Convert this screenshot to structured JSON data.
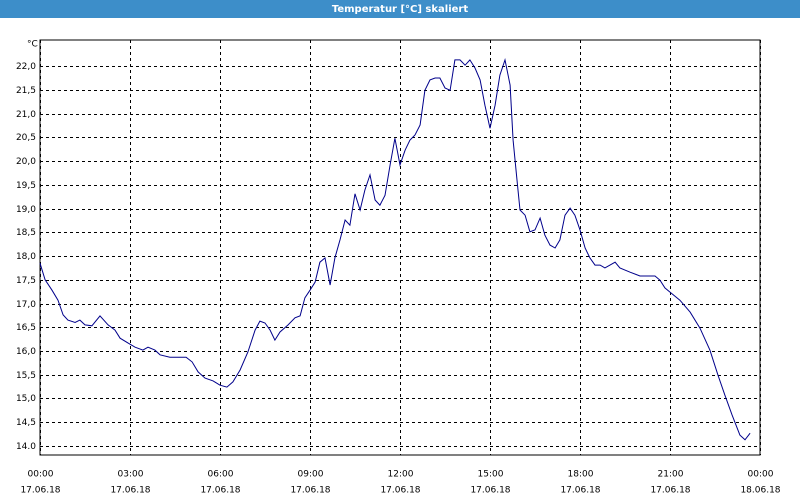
{
  "chart_data": {
    "type": "line",
    "title": "Temperatur [°C] skaliert",
    "y_label": "°C",
    "x": [
      0,
      0.17,
      0.4,
      0.6,
      0.77,
      0.93,
      1.17,
      1.33,
      1.5,
      1.73,
      2,
      2.27,
      2.5,
      2.67,
      2.93,
      3.17,
      3.43,
      3.6,
      3.83,
      4,
      4.33,
      4.67,
      4.87,
      5.07,
      5.27,
      5.5,
      5.77,
      6,
      6.23,
      6.43,
      6.67,
      6.93,
      7.17,
      7.33,
      7.5,
      7.67,
      7.83,
      8,
      8.27,
      8.5,
      8.67,
      8.83,
      9,
      9.17,
      9.33,
      9.5,
      9.67,
      9.83,
      10,
      10.17,
      10.33,
      10.5,
      10.67,
      10.83,
      11,
      11.17,
      11.33,
      11.5,
      11.67,
      11.83,
      12,
      12.17,
      12.33,
      12.5,
      12.67,
      12.83,
      13,
      13.17,
      13.33,
      13.5,
      13.67,
      13.83,
      14,
      14.17,
      14.33,
      14.5,
      14.67,
      14.83,
      15,
      15.17,
      15.33,
      15.5,
      15.67,
      15.77,
      15.9,
      16,
      16.17,
      16.33,
      16.5,
      16.67,
      16.83,
      17,
      17.17,
      17.33,
      17.5,
      17.67,
      17.83,
      18,
      18.17,
      18.33,
      18.5,
      18.67,
      18.83,
      19,
      19.17,
      19.33,
      19.67,
      20,
      20.5,
      20.67,
      20.83,
      21,
      21.33,
      21.67,
      22,
      22.33,
      22.6,
      22.83,
      23.07,
      23.33,
      23.5,
      23.67
    ],
    "series": [
      {
        "name": "Temperatur",
        "color": "#00008b",
        "values": [
          17.85,
          17.5,
          17.28,
          17.07,
          16.76,
          16.65,
          16.6,
          16.65,
          16.55,
          16.53,
          16.74,
          16.55,
          16.44,
          16.27,
          16.17,
          16.08,
          16.02,
          16.08,
          16.02,
          15.92,
          15.87,
          15.87,
          15.87,
          15.77,
          15.56,
          15.43,
          15.37,
          15.28,
          15.24,
          15.35,
          15.6,
          15.98,
          16.44,
          16.63,
          16.59,
          16.44,
          16.23,
          16.4,
          16.55,
          16.7,
          16.74,
          17.12,
          17.28,
          17.45,
          17.87,
          17.96,
          17.39,
          17.96,
          18.34,
          18.76,
          18.65,
          19.31,
          18.97,
          19.39,
          19.71,
          19.18,
          19.07,
          19.28,
          19.92,
          20.48,
          19.92,
          20.23,
          20.44,
          20.55,
          20.76,
          21.49,
          21.71,
          21.75,
          21.75,
          21.54,
          21.49,
          22.13,
          22.13,
          22.02,
          22.13,
          21.96,
          21.71,
          21.18,
          20.69,
          21.18,
          21.81,
          22.13,
          21.6,
          20.44,
          19.6,
          18.97,
          18.86,
          18.51,
          18.55,
          18.8,
          18.44,
          18.23,
          18.17,
          18.34,
          18.86,
          19.01,
          18.86,
          18.55,
          18.17,
          17.96,
          17.81,
          17.81,
          17.75,
          17.81,
          17.87,
          17.75,
          17.66,
          17.58,
          17.58,
          17.49,
          17.33,
          17.24,
          17.07,
          16.82,
          16.48,
          16.02,
          15.49,
          15.07,
          14.65,
          14.23,
          14.13,
          14.27
        ]
      }
    ],
    "xlim": [
      0,
      24
    ],
    "xticks": [
      {
        "value": 0,
        "label": "00:00",
        "date": "17.06.18"
      },
      {
        "value": 3,
        "label": "03:00",
        "date": "17.06.18"
      },
      {
        "value": 6,
        "label": "06:00",
        "date": "17.06.18"
      },
      {
        "value": 9,
        "label": "09:00",
        "date": "17.06.18"
      },
      {
        "value": 12,
        "label": "12:00",
        "date": "17.06.18"
      },
      {
        "value": 15,
        "label": "15:00",
        "date": "17.06.18"
      },
      {
        "value": 18,
        "label": "18:00",
        "date": "17.06.18"
      },
      {
        "value": 21,
        "label": "21:00",
        "date": "17.06.18"
      },
      {
        "value": 24,
        "label": "00:00",
        "date": "18.06.18"
      }
    ],
    "ylim": [
      13.81,
      22.55
    ],
    "yticks": [
      {
        "value": 14,
        "label": "14.0"
      },
      {
        "value": 14.5,
        "label": "14,5"
      },
      {
        "value": 15,
        "label": "15,0"
      },
      {
        "value": 15.5,
        "label": "15,5"
      },
      {
        "value": 16,
        "label": "16,0"
      },
      {
        "value": 16.5,
        "label": "16,5"
      },
      {
        "value": 17,
        "label": "17,0"
      },
      {
        "value": 17.5,
        "label": "17,5"
      },
      {
        "value": 18,
        "label": "18,0"
      },
      {
        "value": 18.5,
        "label": "18,5"
      },
      {
        "value": 19,
        "label": "19,0"
      },
      {
        "value": 19.5,
        "label": "19,5"
      },
      {
        "value": 20,
        "label": "20,0"
      },
      {
        "value": 20.5,
        "label": "20,5"
      },
      {
        "value": 21,
        "label": "21,0"
      },
      {
        "value": 21.5,
        "label": "21,5"
      },
      {
        "value": 22,
        "label": "22,0"
      }
    ],
    "grid": true
  }
}
